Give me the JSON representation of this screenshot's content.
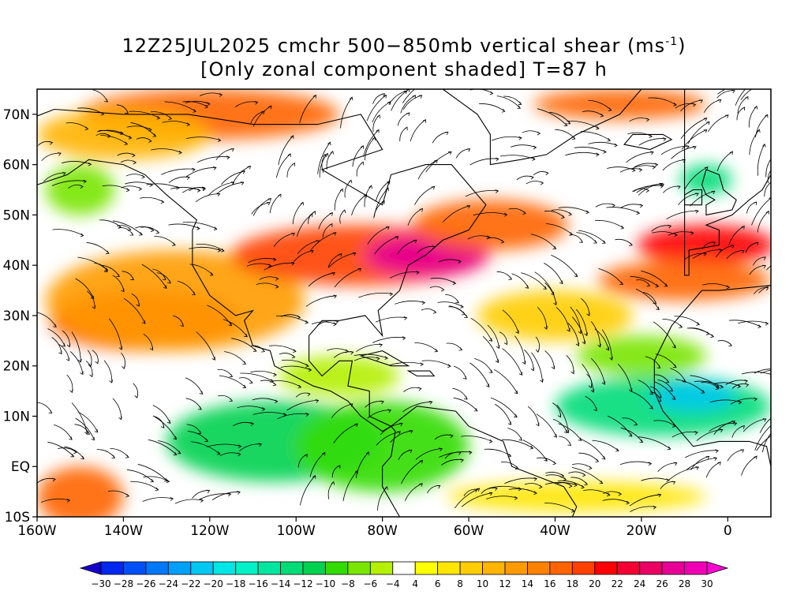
{
  "title": {
    "line1": "12Z25JUL2025 cmchr 500−850mb vertical shear (ms",
    "unit_sup": "-1",
    "line1_end": ")",
    "line2": "[Only zonal component shaded] T=87 h"
  },
  "map": {
    "lon_range": [
      -160,
      10
    ],
    "lat_range": [
      -10,
      75
    ],
    "x_ticks": [
      {
        "lon": -160,
        "label": "160W"
      },
      {
        "lon": -140,
        "label": "140W"
      },
      {
        "lon": -120,
        "label": "120W"
      },
      {
        "lon": -100,
        "label": "100W"
      },
      {
        "lon": -80,
        "label": "80W"
      },
      {
        "lon": -60,
        "label": "60W"
      },
      {
        "lon": -40,
        "label": "40W"
      },
      {
        "lon": -20,
        "label": "20W"
      },
      {
        "lon": 0,
        "label": "0"
      }
    ],
    "y_ticks": [
      {
        "lat": 70,
        "label": "70N"
      },
      {
        "lat": 60,
        "label": "60N"
      },
      {
        "lat": 50,
        "label": "50N"
      },
      {
        "lat": 40,
        "label": "40N"
      },
      {
        "lat": 30,
        "label": "30N"
      },
      {
        "lat": 20,
        "label": "20N"
      },
      {
        "lat": 10,
        "label": "10N"
      },
      {
        "lat": 0,
        "label": "EQ"
      },
      {
        "lat": -10,
        "label": "10S"
      }
    ],
    "shear_regions": [
      {
        "lon": -135,
        "lat": 29,
        "rx": 22,
        "ry": 6,
        "value": 18
      },
      {
        "lon": -128,
        "lat": 33,
        "rx": 30,
        "ry": 10,
        "value": 12
      },
      {
        "lon": -120,
        "lat": 70,
        "rx": 30,
        "ry": 5,
        "value": 16
      },
      {
        "lon": -140,
        "lat": 66,
        "rx": 20,
        "ry": 5,
        "value": 10
      },
      {
        "lon": -85,
        "lat": 42,
        "rx": 30,
        "ry": 6,
        "value": 18
      },
      {
        "lon": -70,
        "lat": 42,
        "rx": 14,
        "ry": 4,
        "value": 26
      },
      {
        "lon": -55,
        "lat": 48,
        "rx": 18,
        "ry": 5,
        "value": 16
      },
      {
        "lon": -40,
        "lat": 30,
        "rx": 18,
        "ry": 5,
        "value": 8
      },
      {
        "lon": -5,
        "lat": 44,
        "rx": 16,
        "ry": 4,
        "value": 20
      },
      {
        "lon": -10,
        "lat": 37,
        "rx": 20,
        "ry": 4,
        "value": 16
      },
      {
        "lon": -25,
        "lat": 72,
        "rx": 20,
        "ry": 3,
        "value": 16
      },
      {
        "lon": -150,
        "lat": -6,
        "rx": 10,
        "ry": 6,
        "value": 16
      },
      {
        "lon": -35,
        "lat": -6,
        "rx": 30,
        "ry": 3,
        "value": 6
      },
      {
        "lon": -105,
        "lat": 5,
        "rx": 25,
        "ry": 8,
        "value": -12
      },
      {
        "lon": -80,
        "lat": 4,
        "rx": 20,
        "ry": 9,
        "value": -10
      },
      {
        "lon": -15,
        "lat": 12,
        "rx": 25,
        "ry": 6,
        "value": -14
      },
      {
        "lon": -8,
        "lat": 14,
        "rx": 10,
        "ry": 3,
        "value": -22
      },
      {
        "lon": -90,
        "lat": 18,
        "rx": 14,
        "ry": 4,
        "value": -6
      },
      {
        "lon": -20,
        "lat": 22,
        "rx": 15,
        "ry": 4,
        "value": -8
      },
      {
        "lon": -150,
        "lat": 55,
        "rx": 8,
        "ry": 5,
        "value": -8
      },
      {
        "lon": -5,
        "lat": 57,
        "rx": 6,
        "ry": 3,
        "value": -14
      }
    ]
  },
  "colorbar": {
    "colors": [
      "#1400c8",
      "#0028f0",
      "#0050fa",
      "#0078fa",
      "#00a0fa",
      "#00c8f0",
      "#00e6e6",
      "#00f0c8",
      "#00e6a0",
      "#00dc78",
      "#00d250",
      "#32dc00",
      "#78e600",
      "#b4f000",
      "#ffffff",
      "#ffff00",
      "#ffe600",
      "#ffcd00",
      "#ffb400",
      "#ff9b00",
      "#ff8200",
      "#ff6400",
      "#ff4100",
      "#ff0000",
      "#f50032",
      "#eb0064",
      "#e60096",
      "#f000b4",
      "#fa00d2"
    ],
    "labels": [
      "-30",
      "-28",
      "-26",
      "-24",
      "-22",
      "-20",
      "-18",
      "-16",
      "-14",
      "-12",
      "-10",
      "-8",
      "-6",
      "-4",
      "4",
      "6",
      "8",
      "10",
      "12",
      "14",
      "16",
      "18",
      "20",
      "22",
      "24",
      "26",
      "28",
      "30"
    ]
  }
}
